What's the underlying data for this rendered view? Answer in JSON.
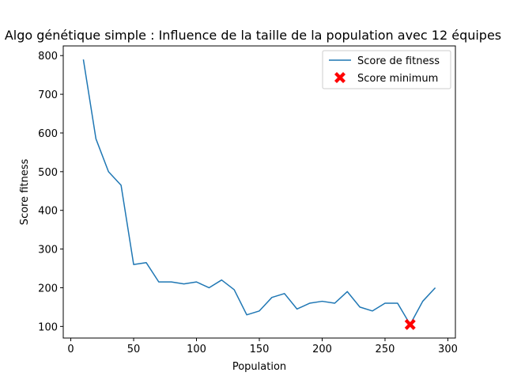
{
  "chart_data": {
    "type": "line",
    "title": "Algo génétique simple : Influence de la taille de la population avec 12 équipes",
    "xlabel": "Population",
    "ylabel": "Score fitness",
    "xlim": [
      -6,
      306
    ],
    "ylim": [
      70,
      825
    ],
    "xticks": [
      0,
      50,
      100,
      150,
      200,
      250,
      300
    ],
    "yticks": [
      100,
      200,
      300,
      400,
      500,
      600,
      700,
      800
    ],
    "grid": false,
    "legend_position": "top-right",
    "series": [
      {
        "name": "Score de fitness",
        "color": "#1f77b4",
        "x": [
          10,
          20,
          30,
          40,
          50,
          60,
          70,
          80,
          90,
          100,
          110,
          120,
          130,
          140,
          150,
          160,
          170,
          180,
          190,
          200,
          210,
          220,
          230,
          240,
          250,
          260,
          270,
          280,
          290
        ],
        "y": [
          790,
          585,
          500,
          465,
          260,
          265,
          215,
          215,
          210,
          215,
          200,
          220,
          195,
          130,
          140,
          175,
          185,
          145,
          160,
          165,
          160,
          190,
          150,
          140,
          160,
          160,
          105,
          165,
          200
        ]
      }
    ],
    "markers": [
      {
        "name": "Score minimum",
        "color": "#ff0000",
        "marker": "X",
        "x": 270,
        "y": 105
      }
    ]
  }
}
